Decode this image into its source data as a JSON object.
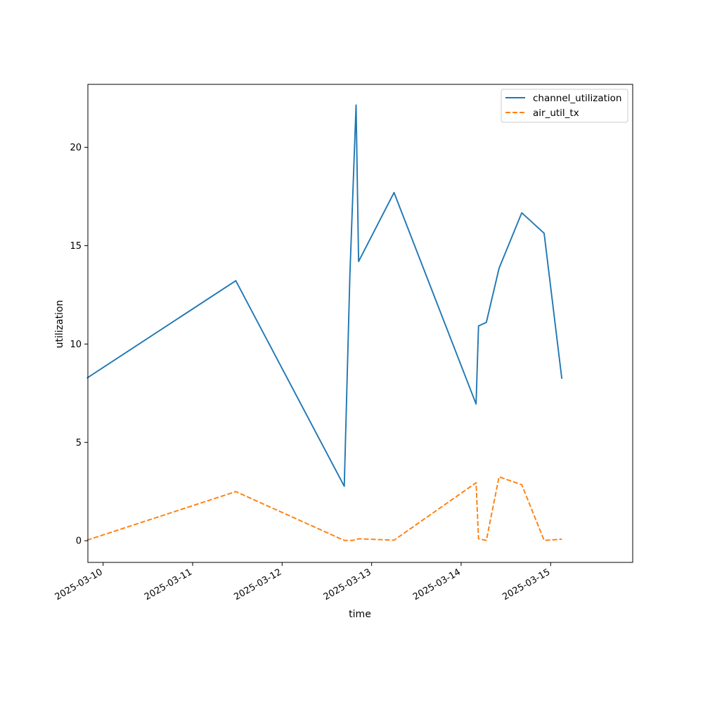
{
  "chart_data": {
    "type": "line",
    "title": "",
    "xlabel": "time",
    "ylabel": "utilization",
    "x_ticks": [
      "2025-03-10",
      "2025-03-11",
      "2025-03-12",
      "2025-03-13",
      "2025-03-14",
      "2025-03-15"
    ],
    "y_ticks": [
      0,
      5,
      10,
      15,
      20
    ],
    "xlim": [
      "2025-03-09 19:55",
      "2025-03-15 22:00"
    ],
    "ylim": [
      -1.1,
      23.2
    ],
    "grid": false,
    "legend_position": "top-right",
    "series": [
      {
        "name": "channel_utilization",
        "color": "#1f77b4",
        "style": "solid",
        "points": [
          [
            "2025-03-09 19:40",
            8.27
          ],
          [
            "2025-03-11 11:35",
            13.22
          ],
          [
            "2025-03-12 16:40",
            2.77
          ],
          [
            "2025-03-12 18:10",
            13.5
          ],
          [
            "2025-03-12 19:50",
            22.15
          ],
          [
            "2025-03-12 20:30",
            14.2
          ],
          [
            "2025-03-13 06:00",
            17.7
          ],
          [
            "2025-03-14 04:00",
            6.95
          ],
          [
            "2025-03-14 04:40",
            10.92
          ],
          [
            "2025-03-14 06:45",
            11.1
          ],
          [
            "2025-03-14 10:10",
            13.85
          ],
          [
            "2025-03-14 16:15",
            16.67
          ],
          [
            "2025-03-14 22:15",
            15.63
          ],
          [
            "2025-03-15 03:00",
            8.23
          ]
        ]
      },
      {
        "name": "air_util_tx",
        "color": "#ff7f0e",
        "style": "dashed",
        "points": [
          [
            "2025-03-09 19:40",
            0.03
          ],
          [
            "2025-03-11 11:35",
            2.5
          ],
          [
            "2025-03-12 16:40",
            0.02
          ],
          [
            "2025-03-12 18:55",
            0.02
          ],
          [
            "2025-03-12 20:30",
            0.1
          ],
          [
            "2025-03-13 06:00",
            0.03
          ],
          [
            "2025-03-14 04:00",
            2.95
          ],
          [
            "2025-03-14 04:40",
            0.1
          ],
          [
            "2025-03-14 06:45",
            0.02
          ],
          [
            "2025-03-14 10:10",
            3.25
          ],
          [
            "2025-03-14 16:15",
            2.85
          ],
          [
            "2025-03-14 22:15",
            0.02
          ],
          [
            "2025-03-15 03:00",
            0.08
          ]
        ]
      }
    ]
  }
}
